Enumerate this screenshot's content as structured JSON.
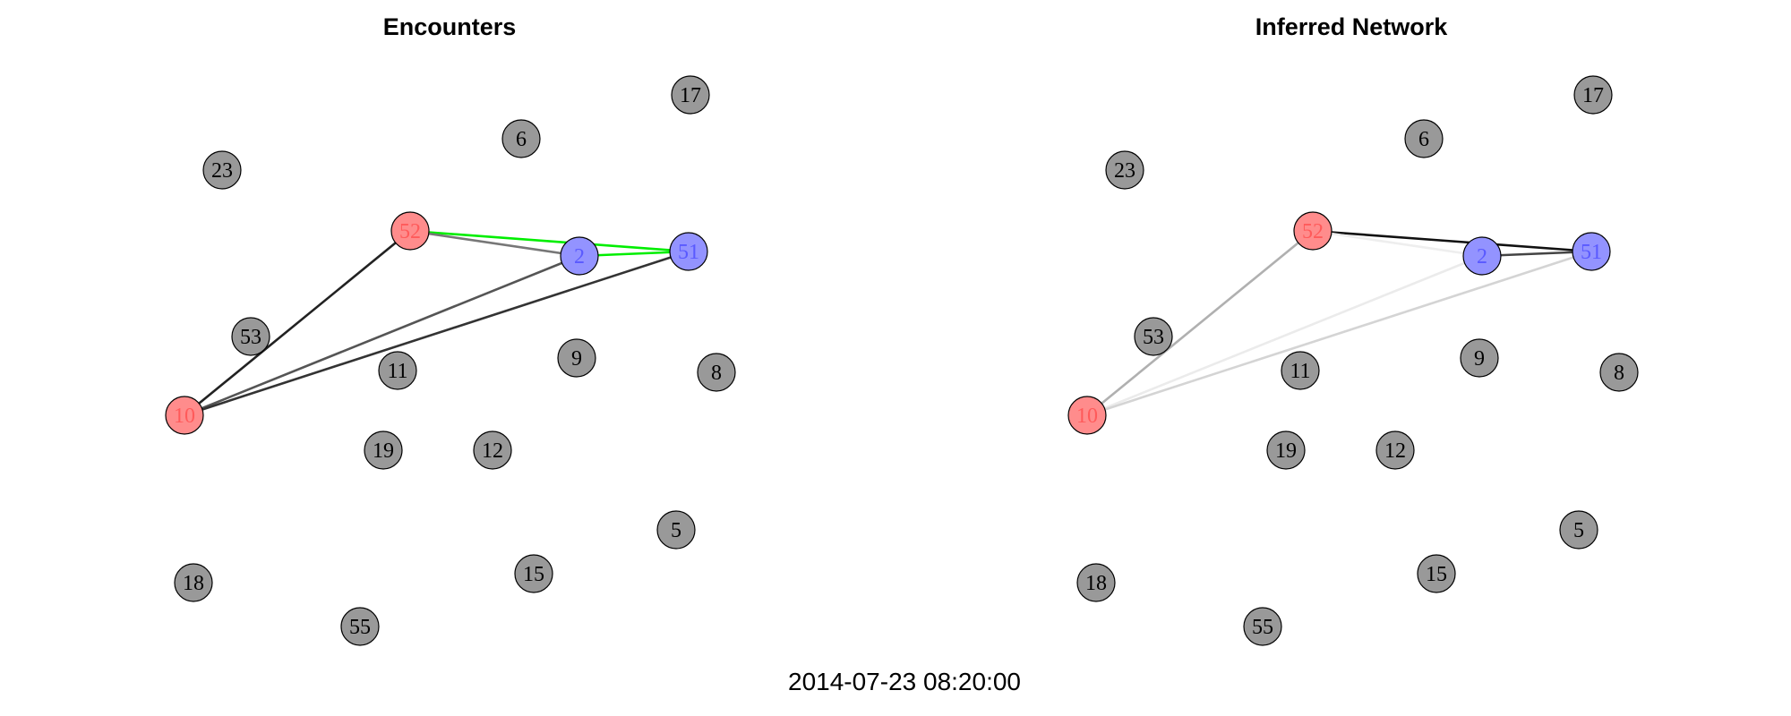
{
  "timestamp": "2014-07-23 08:20:00",
  "colors": {
    "node_default": "#999999",
    "node_red": "#ff8c8c",
    "node_blue": "#9393ff",
    "label_default": "#000000",
    "label_red": "#ff5a5a",
    "label_blue": "#5a5aff",
    "node_outline": "#000000"
  },
  "panels": [
    {
      "title": "Encounters",
      "nodes": [
        {
          "id": "17",
          "group": "default"
        },
        {
          "id": "6",
          "group": "default"
        },
        {
          "id": "23",
          "group": "default"
        },
        {
          "id": "52",
          "group": "red"
        },
        {
          "id": "2",
          "group": "blue"
        },
        {
          "id": "51",
          "group": "blue"
        },
        {
          "id": "53",
          "group": "default"
        },
        {
          "id": "9",
          "group": "default"
        },
        {
          "id": "8",
          "group": "default"
        },
        {
          "id": "11",
          "group": "default"
        },
        {
          "id": "10",
          "group": "red"
        },
        {
          "id": "19",
          "group": "default"
        },
        {
          "id": "12",
          "group": "default"
        },
        {
          "id": "5",
          "group": "default"
        },
        {
          "id": "15",
          "group": "default"
        },
        {
          "id": "18",
          "group": "default"
        },
        {
          "id": "55",
          "group": "default"
        }
      ],
      "edges": [
        {
          "source": "52",
          "target": "51",
          "color": "#00ee00"
        },
        {
          "source": "52",
          "target": "2",
          "color": "#777777"
        },
        {
          "source": "2",
          "target": "51",
          "color": "#00ee00"
        },
        {
          "source": "10",
          "target": "52",
          "color": "#222222"
        },
        {
          "source": "10",
          "target": "2",
          "color": "#555555"
        },
        {
          "source": "10",
          "target": "51",
          "color": "#333333"
        }
      ]
    },
    {
      "title": "Inferred Network",
      "nodes": [
        {
          "id": "17",
          "group": "default"
        },
        {
          "id": "6",
          "group": "default"
        },
        {
          "id": "23",
          "group": "default"
        },
        {
          "id": "52",
          "group": "red"
        },
        {
          "id": "2",
          "group": "blue"
        },
        {
          "id": "51",
          "group": "blue"
        },
        {
          "id": "53",
          "group": "default"
        },
        {
          "id": "9",
          "group": "default"
        },
        {
          "id": "8",
          "group": "default"
        },
        {
          "id": "11",
          "group": "default"
        },
        {
          "id": "10",
          "group": "red"
        },
        {
          "id": "19",
          "group": "default"
        },
        {
          "id": "12",
          "group": "default"
        },
        {
          "id": "5",
          "group": "default"
        },
        {
          "id": "15",
          "group": "default"
        },
        {
          "id": "18",
          "group": "default"
        },
        {
          "id": "55",
          "group": "default"
        }
      ],
      "edges": [
        {
          "source": "52",
          "target": "51",
          "color": "#111111"
        },
        {
          "source": "52",
          "target": "2",
          "color": "#eeeeee"
        },
        {
          "source": "2",
          "target": "51",
          "color": "#444444"
        },
        {
          "source": "10",
          "target": "52",
          "color": "#b0b0b0"
        },
        {
          "source": "10",
          "target": "2",
          "color": "#ebebeb"
        },
        {
          "source": "10",
          "target": "51",
          "color": "#d4d4d4"
        }
      ]
    }
  ]
}
